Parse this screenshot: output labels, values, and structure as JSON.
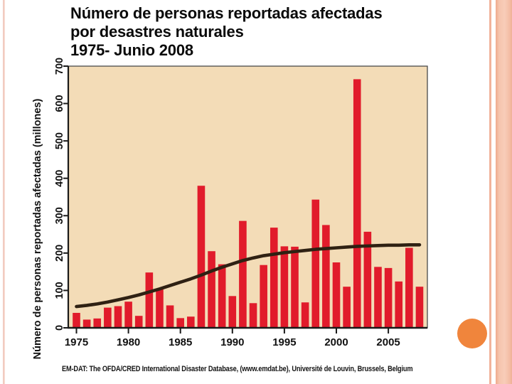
{
  "header": {
    "lines": [
      "Número de personas reportadas afectadas",
      "por desastres naturales",
      "1975- Junio 2008"
    ]
  },
  "chart_data": {
    "type": "bar",
    "title": "Número de personas reportadas afectadas por desastres naturales 1975- Junio 2008",
    "ylabel": "Número de personas reportadas afectadas (millones)",
    "xlabel": "",
    "ylim": [
      0,
      700
    ],
    "yticks": [
      0,
      100,
      200,
      300,
      400,
      500,
      600,
      700
    ],
    "xtick_labels": [
      "1975",
      "1980",
      "1985",
      "1990",
      "1995",
      "2000",
      "2005"
    ],
    "grid": false,
    "legend": "none",
    "plot_bg": "#f3dcb7",
    "categories": [
      1975,
      1976,
      1977,
      1978,
      1979,
      1980,
      1981,
      1982,
      1983,
      1984,
      1985,
      1986,
      1987,
      1988,
      1989,
      1990,
      1991,
      1992,
      1993,
      1994,
      1995,
      1996,
      1997,
      1998,
      1999,
      2000,
      2001,
      2002,
      2003,
      2004,
      2005,
      2006,
      2007,
      2008
    ],
    "series": [
      {
        "name": "personas_afectadas_anual",
        "type": "bar",
        "color": "#e11b2b",
        "values": [
          40,
          22,
          25,
          54,
          58,
          70,
          32,
          148,
          104,
          60,
          26,
          30,
          380,
          205,
          170,
          85,
          286,
          66,
          168,
          268,
          218,
          217,
          68,
          343,
          275,
          175,
          110,
          665,
          257,
          163,
          160,
          124,
          214,
          110
        ]
      },
      {
        "name": "tendencia_suavizada",
        "type": "line",
        "color": "#2f2113",
        "values": [
          57,
          60,
          64,
          69,
          75,
          81,
          88,
          96,
          104,
          113,
          122,
          131,
          141,
          152,
          162,
          171,
          180,
          187,
          193,
          197,
          201,
          204,
          207,
          210,
          212,
          214,
          216,
          218,
          219,
          220,
          221,
          221,
          222,
          222
        ]
      }
    ],
    "source": "EM-DAT: The OFDA/CRED International Disaster Database, (www.emdat.be), Université de Louvin, Brussels, Belgium"
  },
  "colors": {
    "axis": "#1a1a1a",
    "plot_border": "#4a4a4a",
    "tick_text": "#111111",
    "accent_left": "#f2cbc1",
    "accent_right": "#f1b29a",
    "circle": "#f0853c"
  }
}
